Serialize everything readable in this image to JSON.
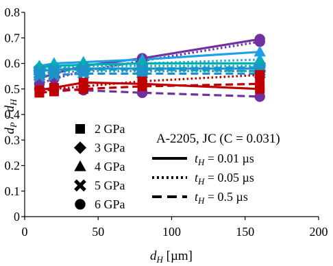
{
  "chart_data": {
    "type": "line",
    "title": "",
    "xlabel_main": "d",
    "xlabel_sub": "H",
    "xlabel_unit": " [µm]",
    "ylabel_parts": [
      "d",
      "P",
      " / ",
      "d",
      "H"
    ],
    "xlim": [
      0,
      200
    ],
    "ylim": [
      0,
      0.8
    ],
    "xticks": [
      0,
      50,
      100,
      150,
      200
    ],
    "yticks": [
      0,
      0.1,
      0.2,
      0.3,
      0.4,
      0.5,
      0.6,
      0.7,
      0.8
    ],
    "ytick_labels": [
      "0",
      "0.1",
      "0.2",
      "0.3",
      "0.4",
      "0.5",
      "0.6",
      "0.7",
      "0.8"
    ],
    "xtick_labels": [
      "0",
      "50",
      "100",
      "150",
      "200"
    ],
    "x": [
      10,
      20,
      40,
      80,
      160
    ],
    "annotation": "A-2205, JC (C = 0.031)",
    "pressure_legend": [
      {
        "label": "2 GPa",
        "marker": "square"
      },
      {
        "label": "3 GPa",
        "marker": "diamond"
      },
      {
        "label": "4 GPa",
        "marker": "triangle"
      },
      {
        "label": "5 GPa",
        "marker": "cross"
      },
      {
        "label": "6 GPa",
        "marker": "circle"
      }
    ],
    "time_legend": [
      {
        "label_var": "t",
        "label_sub": "H",
        "label_rest": " = 0.01 µs",
        "dash": "solid"
      },
      {
        "label_var": "t",
        "label_sub": "H",
        "label_rest": " = 0.05 µs",
        "dash": "dotted"
      },
      {
        "label_var": "t",
        "label_sub": "H",
        "label_rest": " = 0.5 µs",
        "dash": "dashed"
      }
    ],
    "colors": {
      "2 GPa": "#c00000",
      "3 GPa": "#00b0b0",
      "4 GPa": "#1ea0e8",
      "5 GPa": "#2090c8",
      "6 GPa": "#7030a0"
    },
    "series": [
      {
        "pressure": "6 GPa",
        "time": "0.01",
        "values": [
          0.54,
          0.56,
          0.59,
          0.62,
          0.695
        ]
      },
      {
        "pressure": "6 GPa",
        "time": "0.05",
        "values": [
          0.52,
          0.54,
          0.57,
          0.61,
          0.685
        ]
      },
      {
        "pressure": "6 GPa",
        "time": "0.5",
        "values": [
          0.5,
          0.5,
          0.495,
          0.485,
          0.47
        ]
      },
      {
        "pressure": "4 GPa",
        "time": "0.01",
        "values": [
          0.59,
          0.6,
          0.605,
          0.615,
          0.645
        ]
      },
      {
        "pressure": "4 GPa",
        "time": "0.05",
        "values": [
          0.585,
          0.59,
          0.595,
          0.6,
          0.615
        ]
      },
      {
        "pressure": "4 GPa",
        "time": "0.5",
        "values": [
          0.575,
          0.58,
          0.58,
          0.58,
          0.585
        ]
      },
      {
        "pressure": "3 GPa",
        "time": "0.01",
        "values": [
          0.585,
          0.59,
          0.595,
          0.6,
          0.6
        ]
      },
      {
        "pressure": "3 GPa",
        "time": "0.05",
        "values": [
          0.58,
          0.585,
          0.59,
          0.59,
          0.59
        ]
      },
      {
        "pressure": "3 GPa",
        "time": "0.5",
        "values": [
          0.57,
          0.575,
          0.575,
          0.575,
          0.57
        ]
      },
      {
        "pressure": "5 GPa",
        "time": "0.01",
        "values": [
          0.57,
          0.575,
          0.58,
          0.58,
          0.58
        ]
      },
      {
        "pressure": "5 GPa",
        "time": "0.05",
        "values": [
          0.56,
          0.565,
          0.57,
          0.57,
          0.57
        ]
      },
      {
        "pressure": "5 GPa",
        "time": "0.5",
        "values": [
          0.55,
          0.555,
          0.56,
          0.56,
          0.56
        ]
      },
      {
        "pressure": "2 GPa",
        "time": "0.01",
        "values": [
          0.495,
          0.505,
          0.525,
          0.52,
          0.5
        ]
      },
      {
        "pressure": "2 GPa",
        "time": "0.05",
        "values": [
          0.49,
          0.5,
          0.51,
          0.53,
          0.555
        ]
      },
      {
        "pressure": "2 GPa",
        "time": "0.5",
        "values": [
          0.485,
          0.49,
          0.5,
          0.51,
          0.52
        ]
      }
    ]
  }
}
